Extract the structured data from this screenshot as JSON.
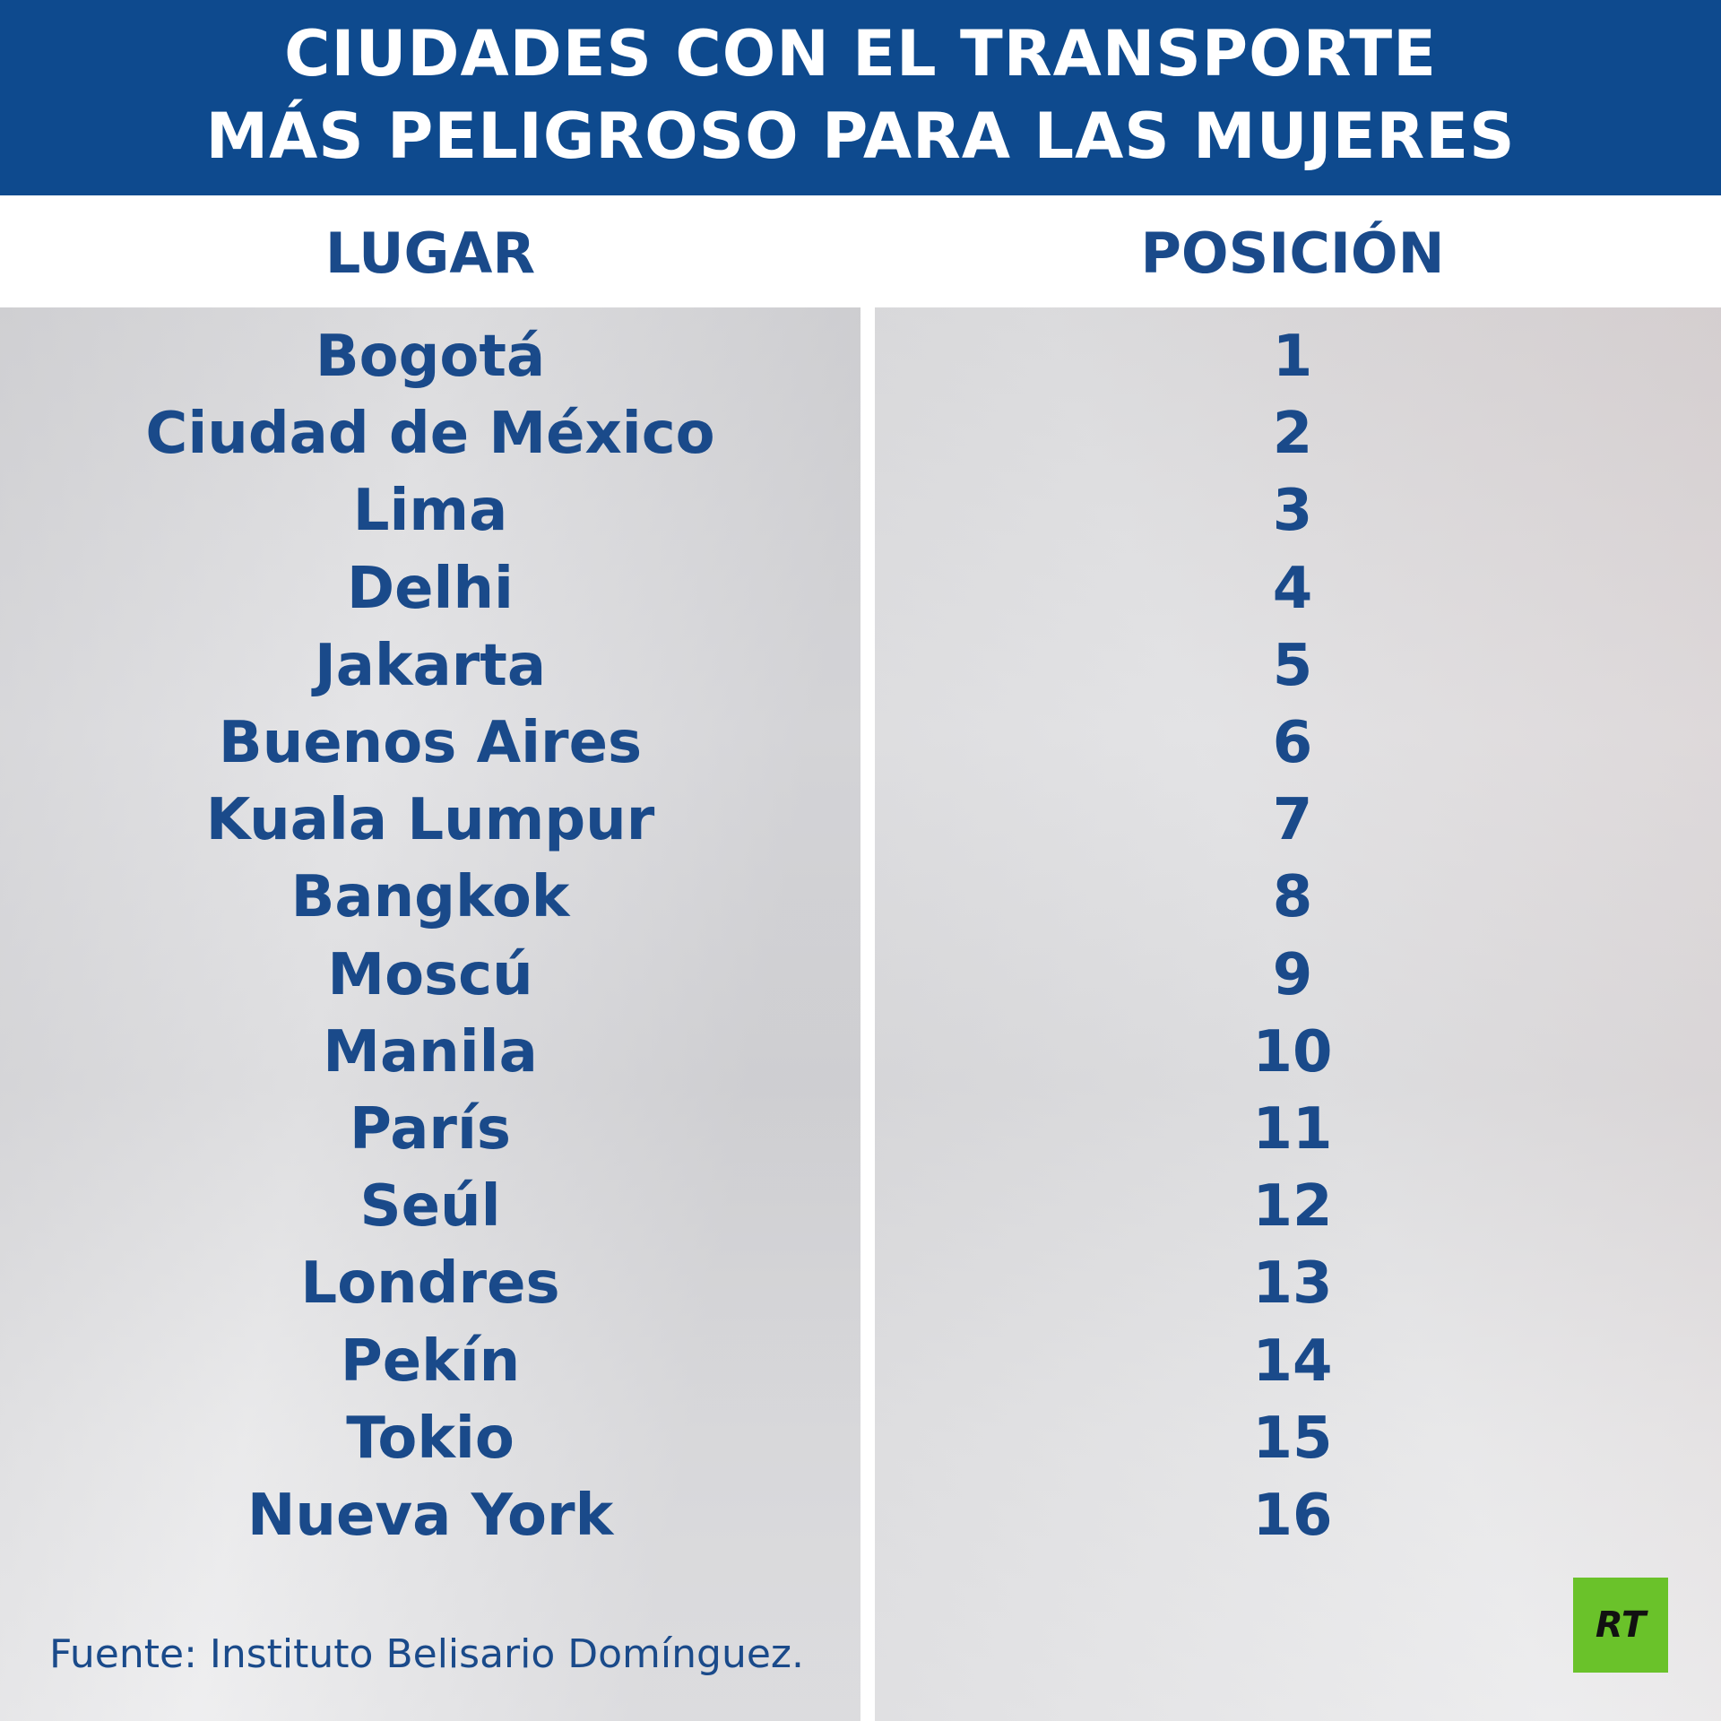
{
  "header": {
    "title_lines": [
      "CIUDADES CON EL TRANSPORTE",
      "MÁS PELIGROSO PARA LAS MUJERES"
    ]
  },
  "table": {
    "columns": [
      "LUGAR",
      "POSICIÓN"
    ],
    "rows": [
      [
        "Bogotá",
        1
      ],
      [
        "Ciudad de México",
        2
      ],
      [
        "Lima",
        3
      ],
      [
        "Delhi",
        4
      ],
      [
        "Jakarta",
        5
      ],
      [
        "Buenos Aires",
        6
      ],
      [
        "Kuala Lumpur",
        7
      ],
      [
        "Bangkok",
        8
      ],
      [
        "Moscú",
        9
      ],
      [
        "Manila",
        10
      ],
      [
        "París",
        11
      ],
      [
        "Seúl",
        12
      ],
      [
        "Londres",
        13
      ],
      [
        "Pekín",
        14
      ],
      [
        "Tokio",
        15
      ],
      [
        "Nueva York",
        16
      ]
    ]
  },
  "footer": {
    "source": "Fuente: Instituto Belisario Domínguez.",
    "logo": "RT"
  }
}
